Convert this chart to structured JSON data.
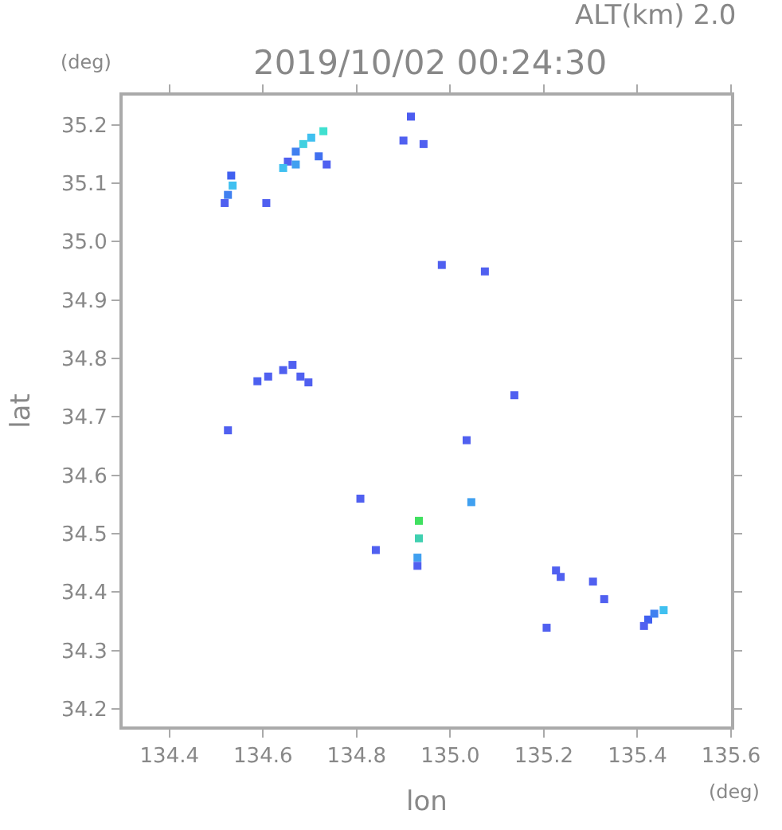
{
  "chart_data": {
    "type": "scatter",
    "title": "2019/10/02 00:24:30",
    "subtitle": "ALT(km) 2.0",
    "xlabel": "lon",
    "ylabel": "lat",
    "annotations": [
      "(deg)",
      "(deg)"
    ],
    "xlim": [
      134.3,
      135.6
    ],
    "xticks": [
      134.4,
      134.6,
      134.8,
      {
        "value": 135,
        "label": "135.0"
      },
      135.2,
      135.4,
      135.6
    ],
    "ylim": [
      34.17,
      35.25
    ],
    "yticks": [
      34.2,
      34.3,
      34.4,
      34.5,
      34.6,
      34.7,
      34.8,
      34.9,
      {
        "value": 35,
        "label": "35.0"
      },
      35.1,
      35.2
    ],
    "marker": "square",
    "x": [
      134.916,
      134.729,
      134.703,
      134.686,
      134.67,
      134.653,
      134.643,
      134.67,
      134.719,
      134.736,
      134.532,
      134.535,
      134.525,
      134.518,
      134.607,
      134.9,
      134.943,
      134.982,
      135.074,
      134.588,
      134.611,
      134.643,
      134.68,
      134.697,
      134.663,
      134.525,
      135.035,
      135.137,
      134.808,
      134.841,
      134.933,
      134.933,
      134.93,
      134.93,
      135.045,
      135.226,
      135.236,
      135.305,
      135.329,
      135.206,
      135.423,
      135.436,
      135.456,
      135.414
    ],
    "values": [
      35.214,
      35.189,
      35.178,
      35.167,
      35.154,
      35.137,
      35.126,
      35.132,
      35.146,
      35.132,
      35.113,
      35.096,
      35.08,
      35.066,
      35.066,
      35.173,
      35.167,
      34.96,
      34.949,
      34.761,
      34.769,
      34.78,
      34.769,
      34.759,
      34.789,
      34.677,
      34.66,
      34.737,
      34.56,
      34.472,
      34.522,
      34.492,
      34.459,
      34.445,
      34.554,
      34.437,
      34.426,
      34.418,
      34.388,
      34.339,
      34.353,
      34.363,
      34.369,
      34.342
    ],
    "colors": [
      "#4c5cf0",
      "#40e0d0",
      "#40c0f0",
      "#40d0e0",
      "#4080f0",
      "#5060f0",
      "#40c0f0",
      "#40a0f0",
      "#4070f0",
      "#5060f0",
      "#4060f0",
      "#40c0f0",
      "#4080f0",
      "#5060f0",
      "#5060f0",
      "#5060f0",
      "#5060f0",
      "#5060f0",
      "#5060f0",
      "#4c60f0",
      "#5060f0",
      "#5060f0",
      "#5060f0",
      "#5060f0",
      "#5060f0",
      "#5060f0",
      "#5060f0",
      "#5060f0",
      "#5060f0",
      "#5060f0",
      "#40e060",
      "#40d0b0",
      "#40a0f0",
      "#5060f0",
      "#40a0f0",
      "#5060f0",
      "#5060f0",
      "#5060f0",
      "#5060f0",
      "#5060f0",
      "#4060f0",
      "#4080f0",
      "#40c0f0",
      "#5060f0"
    ]
  }
}
